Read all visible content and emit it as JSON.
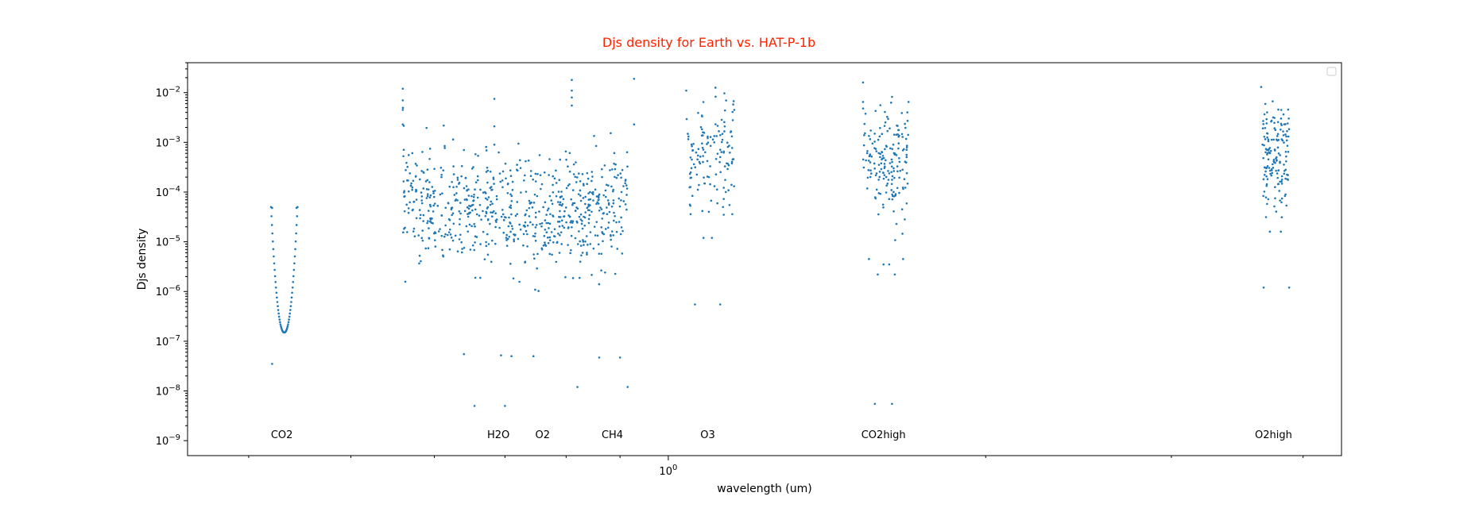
{
  "chart_data": {
    "type": "scatter",
    "title": "Djs density for Earth vs. HAT-P-1b",
    "title_color": "#ff2200",
    "xlabel": "wavelength (um)",
    "ylabel": "Djs density",
    "x_scale": "log",
    "y_scale": "log",
    "xlim": [
      0.35,
      4.35
    ],
    "ylim": [
      5e-10,
      0.04
    ],
    "x_major_tick_labels": [
      {
        "value": 1.0,
        "text": "10^0"
      }
    ],
    "y_tick_labels": [
      {
        "value": 1e-09,
        "text": "10^-9"
      },
      {
        "value": 1e-08,
        "text": "10^-8"
      },
      {
        "value": 1e-07,
        "text": "10^-7"
      },
      {
        "value": 1e-06,
        "text": "10^-6"
      },
      {
        "value": 1e-05,
        "text": "10^-5"
      },
      {
        "value": 0.0001,
        "text": "10^-4"
      },
      {
        "value": 0.001,
        "text": "10^-3"
      },
      {
        "value": 0.01,
        "text": "10^-2"
      }
    ],
    "legend": {
      "placement": "top-right",
      "entries": []
    },
    "series_color": "#1f77b4",
    "annotations": [
      {
        "text": "CO2",
        "x": 0.43,
        "y": 1.2e-09
      },
      {
        "text": "H2O",
        "x": 0.69,
        "y": 1.2e-09
      },
      {
        "text": "O2",
        "x": 0.76,
        "y": 1.2e-09
      },
      {
        "text": "CH4",
        "x": 0.885,
        "y": 1.2e-09
      },
      {
        "text": "O3",
        "x": 1.09,
        "y": 1.2e-09
      },
      {
        "text": "CO2high",
        "x": 1.6,
        "y": 1.2e-09
      },
      {
        "text": "O2high",
        "x": 3.75,
        "y": 1.2e-09
      }
    ],
    "clusters": [
      {
        "name": "CO2",
        "x_range": [
          0.42,
          0.445
        ],
        "y_center": 3e-07,
        "shape": "v",
        "y_max": 5e-05,
        "y_min": 1.5e-07,
        "points": 60,
        "outliers": [
          [
            0.421,
            3.5e-08
          ],
          [
            0.421,
            4.8e-05
          ],
          [
            0.444,
            4.8e-05
          ]
        ]
      },
      {
        "name": "H2O_O2_band",
        "x_range": [
          0.56,
          0.915
        ],
        "y_center": 4e-05,
        "shape": "scatter",
        "points": 720,
        "outliers": [
          [
            0.56,
            0.012
          ],
          [
            0.56,
            0.007
          ],
          [
            0.56,
            0.0045
          ],
          [
            0.56,
            0.0023
          ],
          [
            0.684,
            0.0075
          ],
          [
            0.684,
            0.0021
          ],
          [
            0.684,
            0.0009
          ],
          [
            0.81,
            0.018
          ],
          [
            0.81,
            0.011
          ],
          [
            0.81,
            0.008
          ],
          [
            0.81,
            0.0055
          ],
          [
            0.655,
            5e-09
          ],
          [
            0.7,
            5e-09
          ],
          [
            0.64,
            5.5e-08
          ],
          [
            0.694,
            5.2e-08
          ],
          [
            0.71,
            5e-08
          ],
          [
            0.745,
            5e-08
          ],
          [
            0.82,
            1.2e-08
          ],
          [
            0.9,
            4.7e-08
          ],
          [
            0.86,
            4.7e-08
          ],
          [
            0.928,
            0.019
          ],
          [
            0.928,
            0.0023
          ],
          [
            0.915,
            1.2e-08
          ]
        ]
      },
      {
        "name": "O3",
        "x_range": [
          1.04,
          1.155
        ],
        "y_center": 0.0005,
        "shape": "scatter",
        "points": 130,
        "outliers": [
          [
            1.04,
            0.011
          ],
          [
            1.155,
            0.0045
          ],
          [
            1.06,
            5.5e-07
          ],
          [
            1.12,
            5.5e-07
          ],
          [
            1.08,
            1.2e-05
          ],
          [
            1.1,
            1.2e-05
          ],
          [
            1.05,
            3.6e-05
          ],
          [
            1.15,
            3.6e-05
          ]
        ]
      },
      {
        "name": "CO2high",
        "x_range": [
          1.53,
          1.69
        ],
        "y_center": 0.0004,
        "shape": "scatter",
        "points": 170,
        "outliers": [
          [
            1.53,
            0.016
          ],
          [
            1.53,
            0.0065
          ],
          [
            1.69,
            0.0065
          ],
          [
            1.55,
            4.5e-06
          ],
          [
            1.67,
            4.5e-06
          ],
          [
            1.6,
            3.5e-06
          ],
          [
            1.62,
            3.5e-06
          ],
          [
            1.58,
            2.2e-06
          ],
          [
            1.64,
            2.2e-06
          ],
          [
            1.57,
            5.5e-09
          ],
          [
            1.63,
            5.5e-09
          ]
        ]
      },
      {
        "name": "O2high",
        "x_range": [
          3.66,
          3.88
        ],
        "y_center": 0.0004,
        "shape": "scatter",
        "points": 150,
        "outliers": [
          [
            3.65,
            0.013
          ],
          [
            3.67,
            1.2e-06
          ],
          [
            3.88,
            1.2e-06
          ],
          [
            3.72,
            1.6e-05
          ],
          [
            3.81,
            1.6e-05
          ]
        ]
      }
    ]
  }
}
